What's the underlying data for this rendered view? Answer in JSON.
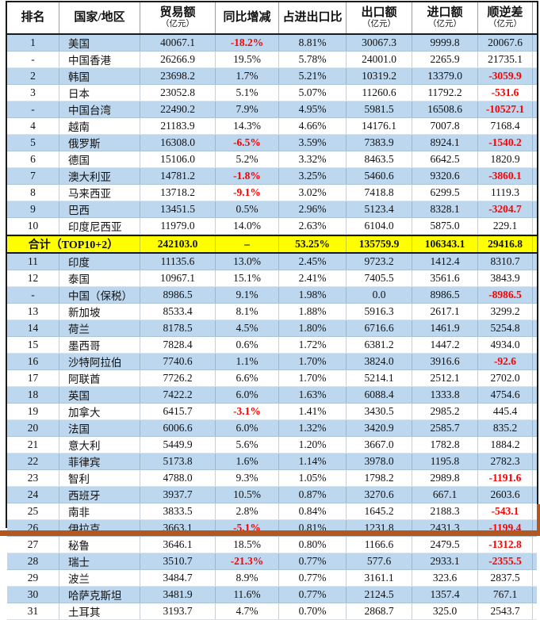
{
  "table": {
    "unit_note": "（亿元）",
    "columns": [
      {
        "key": "rank",
        "label": "排名",
        "unit": false
      },
      {
        "key": "region",
        "label": "国家/地区",
        "unit": false
      },
      {
        "key": "trade",
        "label": "贸易额",
        "unit": true
      },
      {
        "key": "yoy",
        "label": "同比增减",
        "unit": false
      },
      {
        "key": "share",
        "label": "占进出口比",
        "unit": false
      },
      {
        "key": "exp",
        "label": "出口额",
        "unit": true
      },
      {
        "key": "imp",
        "label": "进口额",
        "unit": true
      },
      {
        "key": "bal",
        "label": "顺逆差",
        "unit": true
      }
    ],
    "rows": [
      {
        "rank": "1",
        "region": "美国",
        "trade": "40067.1",
        "yoy": "-18.2%",
        "share": "8.81%",
        "exp": "30067.3",
        "imp": "9999.8",
        "bal": "20067.6"
      },
      {
        "rank": "-",
        "region": "中国香港",
        "trade": "26266.9",
        "yoy": "19.5%",
        "share": "5.78%",
        "exp": "24001.0",
        "imp": "2265.9",
        "bal": "21735.1"
      },
      {
        "rank": "2",
        "region": "韩国",
        "trade": "23698.2",
        "yoy": "1.7%",
        "share": "5.21%",
        "exp": "10319.2",
        "imp": "13379.0",
        "bal": "-3059.9"
      },
      {
        "rank": "3",
        "region": "日本",
        "trade": "23052.8",
        "yoy": "5.1%",
        "share": "5.07%",
        "exp": "11260.6",
        "imp": "11792.2",
        "bal": "-531.6"
      },
      {
        "rank": "-",
        "region": "中国台湾",
        "trade": "22490.2",
        "yoy": "7.9%",
        "share": "4.95%",
        "exp": "5981.5",
        "imp": "16508.6",
        "bal": "-10527.1"
      },
      {
        "rank": "4",
        "region": "越南",
        "trade": "21183.9",
        "yoy": "14.3%",
        "share": "4.66%",
        "exp": "14176.1",
        "imp": "7007.8",
        "bal": "7168.4"
      },
      {
        "rank": "5",
        "region": "俄罗斯",
        "trade": "16308.0",
        "yoy": "-6.5%",
        "share": "3.59%",
        "exp": "7383.9",
        "imp": "8924.1",
        "bal": "-1540.2"
      },
      {
        "rank": "6",
        "region": "德国",
        "trade": "15106.0",
        "yoy": "5.2%",
        "share": "3.32%",
        "exp": "8463.5",
        "imp": "6642.5",
        "bal": "1820.9"
      },
      {
        "rank": "7",
        "region": "澳大利亚",
        "trade": "14781.2",
        "yoy": "-1.8%",
        "share": "3.25%",
        "exp": "5460.6",
        "imp": "9320.6",
        "bal": "-3860.1"
      },
      {
        "rank": "8",
        "region": "马来西亚",
        "trade": "13718.2",
        "yoy": "-9.1%",
        "share": "3.02%",
        "exp": "7418.8",
        "imp": "6299.5",
        "bal": "1119.3"
      },
      {
        "rank": "9",
        "region": "巴西",
        "trade": "13451.5",
        "yoy": "0.5%",
        "share": "2.96%",
        "exp": "5123.4",
        "imp": "8328.1",
        "bal": "-3204.7"
      },
      {
        "rank": "10",
        "region": "印度尼西亚",
        "trade": "11979.0",
        "yoy": "14.0%",
        "share": "2.63%",
        "exp": "6104.0",
        "imp": "5875.0",
        "bal": "229.1"
      },
      {
        "total": true,
        "region": "合计（TOP10+2）",
        "trade": "242103.0",
        "yoy": "–",
        "share": "53.25%",
        "exp": "135759.9",
        "imp": "106343.1",
        "bal": "29416.8"
      },
      {
        "rank": "11",
        "region": "印度",
        "trade": "11135.6",
        "yoy": "13.0%",
        "share": "2.45%",
        "exp": "9723.2",
        "imp": "1412.4",
        "bal": "8310.7"
      },
      {
        "rank": "12",
        "region": "泰国",
        "trade": "10967.1",
        "yoy": "15.1%",
        "share": "2.41%",
        "exp": "7405.5",
        "imp": "3561.6",
        "bal": "3843.9"
      },
      {
        "rank": "-",
        "region": "中国（保税）",
        "trade": "8986.5",
        "yoy": "9.1%",
        "share": "1.98%",
        "exp": "0.0",
        "imp": "8986.5",
        "bal": "-8986.5"
      },
      {
        "rank": "13",
        "region": "新加坡",
        "trade": "8533.4",
        "yoy": "8.1%",
        "share": "1.88%",
        "exp": "5916.3",
        "imp": "2617.1",
        "bal": "3299.2"
      },
      {
        "rank": "14",
        "region": "荷兰",
        "trade": "8178.5",
        "yoy": "4.5%",
        "share": "1.80%",
        "exp": "6716.6",
        "imp": "1461.9",
        "bal": "5254.8"
      },
      {
        "rank": "15",
        "region": "墨西哥",
        "trade": "7828.4",
        "yoy": "0.6%",
        "share": "1.72%",
        "exp": "6381.2",
        "imp": "1447.2",
        "bal": "4934.0"
      },
      {
        "rank": "16",
        "region": "沙特阿拉伯",
        "trade": "7740.6",
        "yoy": "1.1%",
        "share": "1.70%",
        "exp": "3824.0",
        "imp": "3916.6",
        "bal": "-92.6"
      },
      {
        "rank": "17",
        "region": "阿联酋",
        "trade": "7726.2",
        "yoy": "6.6%",
        "share": "1.70%",
        "exp": "5214.1",
        "imp": "2512.1",
        "bal": "2702.0"
      },
      {
        "rank": "18",
        "region": "英国",
        "trade": "7422.2",
        "yoy": "6.0%",
        "share": "1.63%",
        "exp": "6088.4",
        "imp": "1333.8",
        "bal": "4754.6"
      },
      {
        "rank": "19",
        "region": "加拿大",
        "trade": "6415.7",
        "yoy": "-3.1%",
        "share": "1.41%",
        "exp": "3430.5",
        "imp": "2985.2",
        "bal": "445.4"
      },
      {
        "rank": "20",
        "region": "法国",
        "trade": "6006.6",
        "yoy": "6.0%",
        "share": "1.32%",
        "exp": "3420.9",
        "imp": "2585.7",
        "bal": "835.2"
      },
      {
        "rank": "21",
        "region": "意大利",
        "trade": "5449.9",
        "yoy": "5.6%",
        "share": "1.20%",
        "exp": "3667.0",
        "imp": "1782.8",
        "bal": "1884.2"
      },
      {
        "rank": "22",
        "region": "菲律宾",
        "trade": "5173.8",
        "yoy": "1.6%",
        "share": "1.14%",
        "exp": "3978.0",
        "imp": "1195.8",
        "bal": "2782.3"
      },
      {
        "rank": "23",
        "region": "智利",
        "trade": "4788.0",
        "yoy": "9.3%",
        "share": "1.05%",
        "exp": "1798.2",
        "imp": "2989.8",
        "bal": "-1191.6"
      },
      {
        "rank": "24",
        "region": "西班牙",
        "trade": "3937.7",
        "yoy": "10.5%",
        "share": "0.87%",
        "exp": "3270.6",
        "imp": "667.1",
        "bal": "2603.6"
      },
      {
        "rank": "25",
        "region": "南非",
        "trade": "3833.5",
        "yoy": "2.8%",
        "share": "0.84%",
        "exp": "1645.2",
        "imp": "2188.3",
        "bal": "-543.1"
      },
      {
        "rank": "26",
        "region": "伊拉克",
        "trade": "3663.1",
        "yoy": "-5.1%",
        "share": "0.81%",
        "exp": "1231.8",
        "imp": "2431.3",
        "bal": "-1199.4"
      },
      {
        "rank": "27",
        "region": "秘鲁",
        "trade": "3646.1",
        "yoy": "18.5%",
        "share": "0.80%",
        "exp": "1166.6",
        "imp": "2479.5",
        "bal": "-1312.8"
      },
      {
        "rank": "28",
        "region": "瑞士",
        "trade": "3510.7",
        "yoy": "-21.3%",
        "share": "0.77%",
        "exp": "577.6",
        "imp": "2933.1",
        "bal": "-2355.5"
      },
      {
        "rank": "29",
        "region": "波兰",
        "trade": "3484.7",
        "yoy": "8.9%",
        "share": "0.77%",
        "exp": "3161.1",
        "imp": "323.6",
        "bal": "2837.5"
      },
      {
        "rank": "30",
        "region": "哈萨克斯坦",
        "trade": "3481.9",
        "yoy": "11.6%",
        "share": "0.77%",
        "exp": "2124.5",
        "imp": "1357.4",
        "bal": "767.1"
      },
      {
        "rank": "31",
        "region": "土耳其",
        "trade": "3193.7",
        "yoy": "4.7%",
        "share": "0.70%",
        "exp": "2868.7",
        "imp": "325.0",
        "bal": "2543.7"
      }
    ]
  },
  "colors": {
    "stripe_blue": "#BDD7EE",
    "total_yellow": "#FFFF00",
    "negative_red": "#FF0000",
    "border_dark": "#1A1A1A",
    "accent_orange": "#B4571E"
  }
}
